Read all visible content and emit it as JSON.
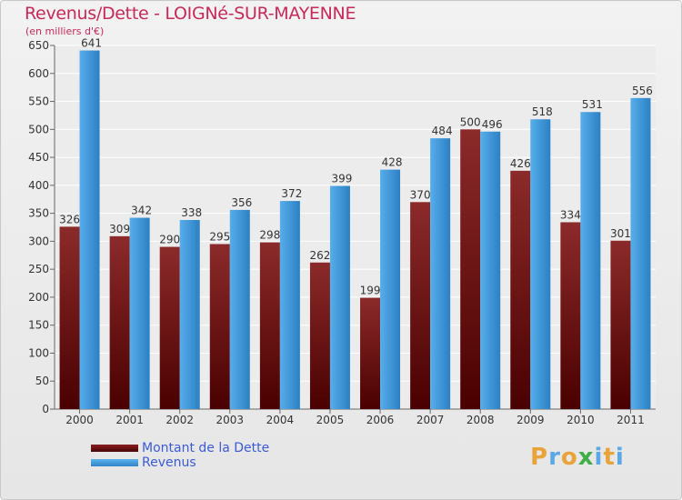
{
  "chart_data": {
    "type": "bar",
    "title": "Revenus/Dette - LOIGNé-SUR-MAYENNE",
    "subtitle": "(en milliers d'€)",
    "categories": [
      "2000",
      "2001",
      "2002",
      "2003",
      "2004",
      "2005",
      "2006",
      "2007",
      "2008",
      "2009",
      "2010",
      "2011"
    ],
    "series": [
      {
        "name": "Montant de la Dette",
        "color": "#7a1515",
        "values": [
          326,
          309,
          290,
          295,
          298,
          262,
          199,
          370,
          500,
          426,
          334,
          301
        ]
      },
      {
        "name": "Revenus",
        "color": "#3d9be0",
        "values": [
          641,
          342,
          338,
          356,
          372,
          399,
          428,
          484,
          496,
          518,
          531,
          556
        ]
      }
    ],
    "ylim": [
      0,
      650
    ],
    "yticks": [
      0,
      50,
      100,
      150,
      200,
      250,
      300,
      350,
      400,
      450,
      500,
      550,
      600,
      650
    ],
    "grid": true,
    "legend_position": "bottom-left"
  },
  "brand": {
    "text": "Proxiti",
    "colors": [
      "#e8a33a",
      "#5aa9e6",
      "#e8a33a",
      "#3fae49",
      "#5aa9e6",
      "#e8a33a",
      "#5aa9e6"
    ]
  }
}
